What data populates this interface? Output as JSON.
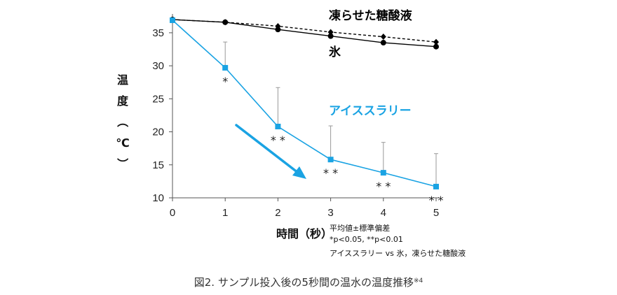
{
  "chart_data": {
    "type": "line",
    "xlabel": "時間（秒）",
    "ylabel": "温度（℃）",
    "xlim": [
      0,
      5
    ],
    "ylim": [
      10,
      37
    ],
    "x_ticks": [
      "0",
      "1",
      "2",
      "3",
      "4",
      "5"
    ],
    "y_ticks": [
      "10",
      "15",
      "20",
      "25",
      "30",
      "35"
    ],
    "grid": false,
    "legend": "none",
    "series": [
      {
        "name": "凍らせた糖酸液",
        "x": [
          0,
          1,
          2,
          3,
          4,
          5
        ],
        "values": [
          37.0,
          36.6,
          36.0,
          35.1,
          34.4,
          33.6
        ],
        "color": "#000000",
        "line_style": "dashed",
        "marker": "diamond"
      },
      {
        "name": "氷",
        "x": [
          0,
          1,
          2,
          3,
          4,
          5
        ],
        "values": [
          37.0,
          36.6,
          35.5,
          34.5,
          33.5,
          32.9
        ],
        "color": "#000000",
        "line_style": "solid",
        "marker": "circle"
      },
      {
        "name": "アイススラリー",
        "x": [
          0,
          1,
          2,
          3,
          4,
          5
        ],
        "values": [
          36.9,
          29.7,
          20.8,
          15.8,
          13.8,
          11.7
        ],
        "error_upper": [
          null,
          33.6,
          26.7,
          20.9,
          18.4,
          16.7
        ],
        "color": "#1aa3e3",
        "line_style": "solid",
        "marker": "square",
        "significance": [
          "",
          "*",
          "* *",
          "* *",
          "* *",
          "* *"
        ]
      }
    ],
    "trend_arrow_color": "#1aa3e3"
  },
  "notes": {
    "line1": "平均値±標準偏差",
    "line2": "*p<0.05, **p<0.01",
    "line3": "アイススラリー vs 氷，凍らせた糖酸液"
  },
  "caption": {
    "text": "図2. サンプル投入後の5秒間の温水の温度推移",
    "superscript": "※4"
  }
}
